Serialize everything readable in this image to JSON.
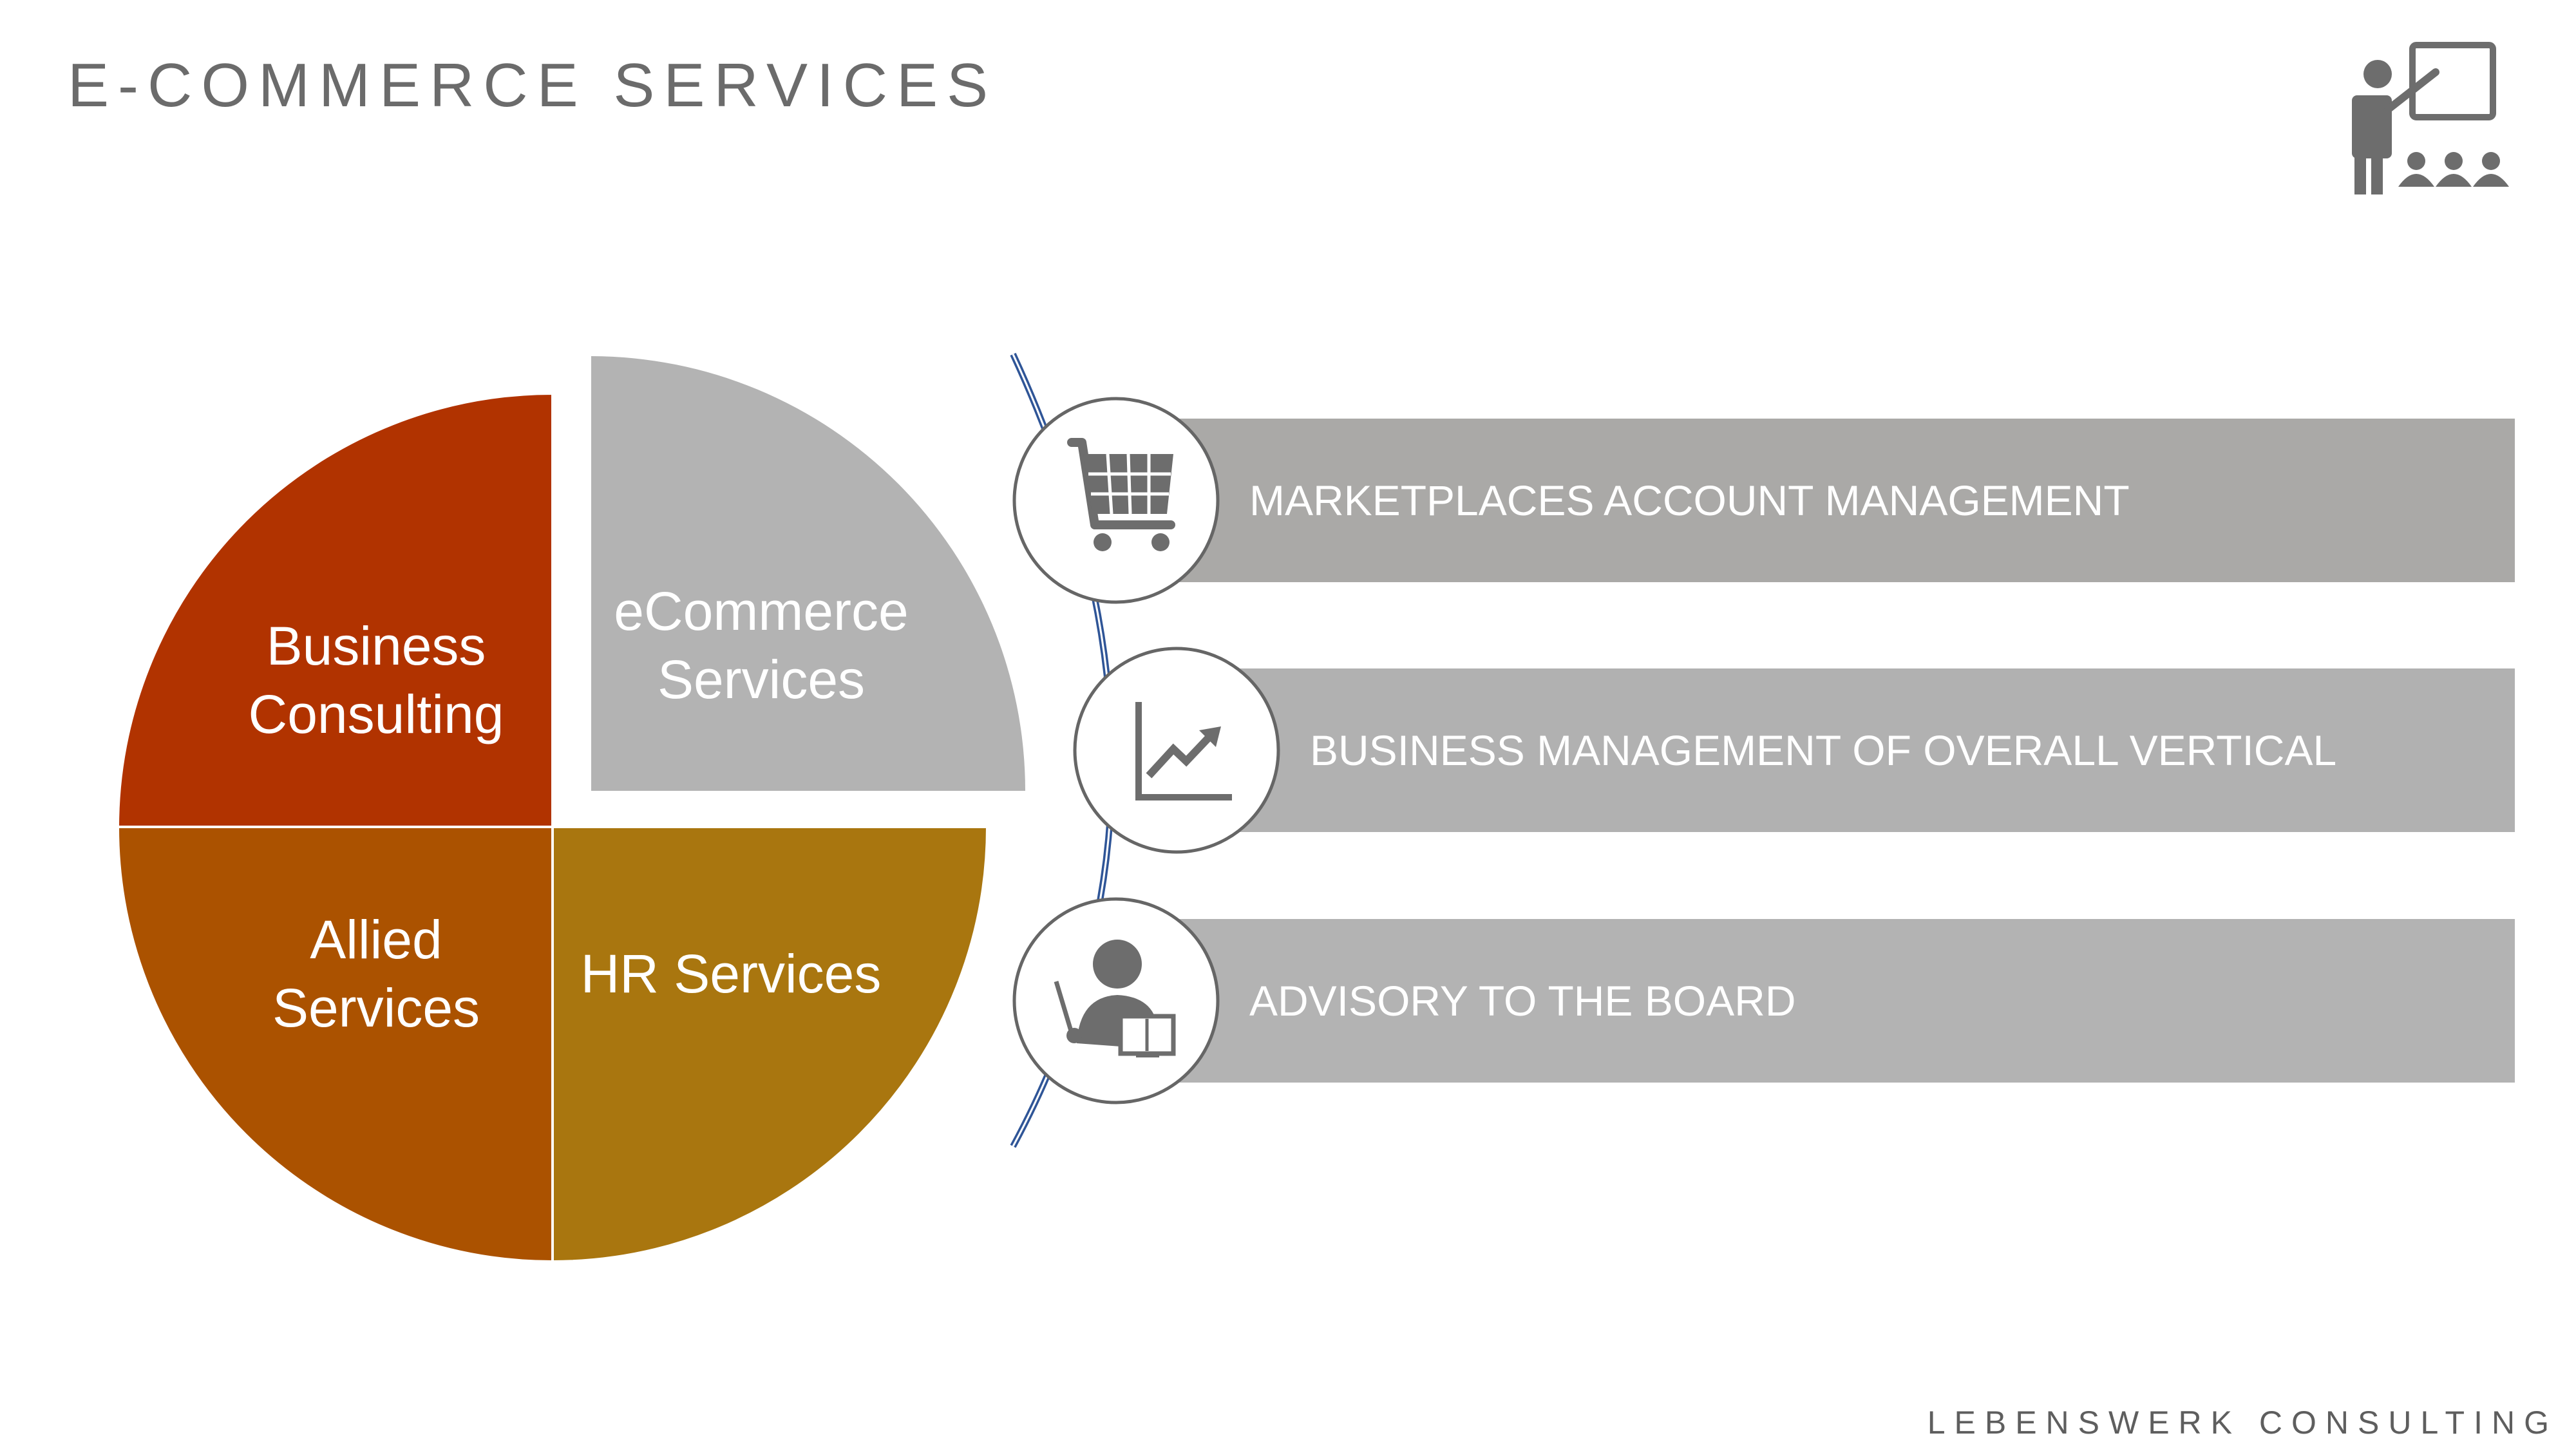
{
  "title": "E-COMMERCE SERVICES",
  "footer": "LEBENSWERK CONSULTING",
  "icons": {
    "header": "teacher-presentation-icon",
    "item_1": "shopping-cart-icon",
    "item_2": "growth-chart-icon",
    "item_3": "advisor-reading-icon"
  },
  "quadrants": [
    {
      "id": "business",
      "line1": "Business",
      "line2": "Consulting",
      "color": "#b13300"
    },
    {
      "id": "ecommerce",
      "line1": "eCommerce",
      "line2": "Services",
      "color": "#b3b3b3"
    },
    {
      "id": "allied",
      "line1": "Allied",
      "line2": "Services",
      "color": "#ab5200"
    },
    {
      "id": "hr",
      "line1": "HR Services",
      "line2": "",
      "color": "#a9760f"
    }
  ],
  "services": [
    {
      "label": "MARKETPLACES ACCOUNT MANAGEMENT",
      "color": "#aaa9a7"
    },
    {
      "label": "BUSINESS MANAGEMENT OF OVERALL VERTICAL",
      "color": "#b1b1b1"
    },
    {
      "label": "ADVISORY TO THE BOARD",
      "color": "#b3b3b3"
    }
  ],
  "colors": {
    "title_text": "#6b6b6b",
    "icon": "#6d6d6d",
    "connector_arc": "#2f5597",
    "circle_border": "#666666"
  }
}
